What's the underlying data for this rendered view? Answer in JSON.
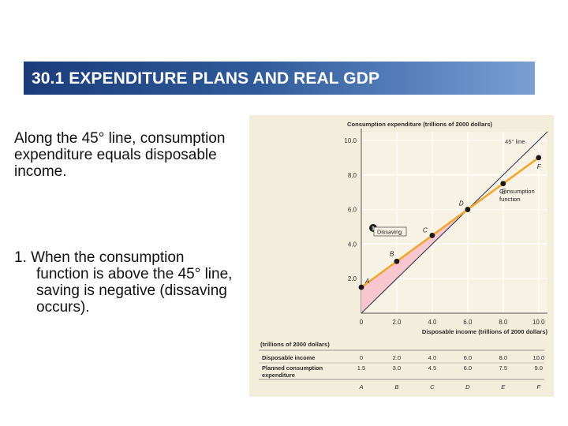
{
  "slide": {
    "title": "30.1 EXPENDITURE PLANS AND REAL GDP",
    "para1": "Along the 45° line, consumption expenditure equals disposable income.",
    "para2_num": "1.",
    "para2_first": "When the consumption",
    "para2_rest": "function is above the 45° line, saving is negative (dissaving occurs)."
  },
  "colors": {
    "title_bg": "#2f5a99",
    "figure_bg": "#f3eddb",
    "consumption_line": "#f0a830",
    "dissaving_fill": "#f7c6cf",
    "line_45": "#303850",
    "grid": "#ffffff"
  },
  "chart_data": {
    "type": "line",
    "ylabel": "Consumption expenditure (trillions of 2000 dollars)",
    "xlabel": "Disposable income (trillions of 2000 dollars)",
    "xlim": [
      0,
      10.5
    ],
    "ylim": [
      0,
      10.5
    ],
    "x_ticks": [
      "0",
      "2.0",
      "4.0",
      "6.0",
      "8.0",
      "10.0"
    ],
    "y_ticks": [
      "2.0",
      "4.0",
      "6.0",
      "8.0",
      "10.0"
    ],
    "grid": true,
    "series": [
      {
        "name": "45° line",
        "x": [
          0,
          10.5
        ],
        "y": [
          0,
          10.5
        ]
      },
      {
        "name": "Consumption function",
        "x": [
          0,
          2,
          4,
          6,
          8,
          10
        ],
        "y": [
          1.5,
          3.0,
          4.5,
          6.0,
          7.5,
          9.0
        ]
      }
    ],
    "points": [
      {
        "label": "A",
        "x": 0,
        "y": 1.5
      },
      {
        "label": "B",
        "x": 2,
        "y": 3.0
      },
      {
        "label": "C",
        "x": 4,
        "y": 4.5
      },
      {
        "label": "D",
        "x": 6,
        "y": 6.0
      },
      {
        "label": "E",
        "x": 8,
        "y": 7.5
      },
      {
        "label": "F",
        "x": 10,
        "y": 9.0
      }
    ],
    "annotations": {
      "line45_label": "45° line",
      "cf_label_1": "Consumption",
      "cf_label_2": "function",
      "marker_num": "1",
      "dissaving_label": "Dissaving"
    },
    "table": {
      "unit_label": "(trillions of 2000 dollars)",
      "rows": [
        {
          "label_1": "Disposable income",
          "label_2": "",
          "values": [
            "0",
            "2.0",
            "4.0",
            "6.0",
            "8.0",
            "10.0"
          ]
        },
        {
          "label_1": "Planned consumption",
          "label_2": "expenditure",
          "values": [
            "1.5",
            "3.0",
            "4.5",
            "6.0",
            "7.5",
            "9.0"
          ]
        }
      ],
      "columns": [
        "A",
        "B",
        "C",
        "D",
        "E",
        "F"
      ]
    }
  }
}
